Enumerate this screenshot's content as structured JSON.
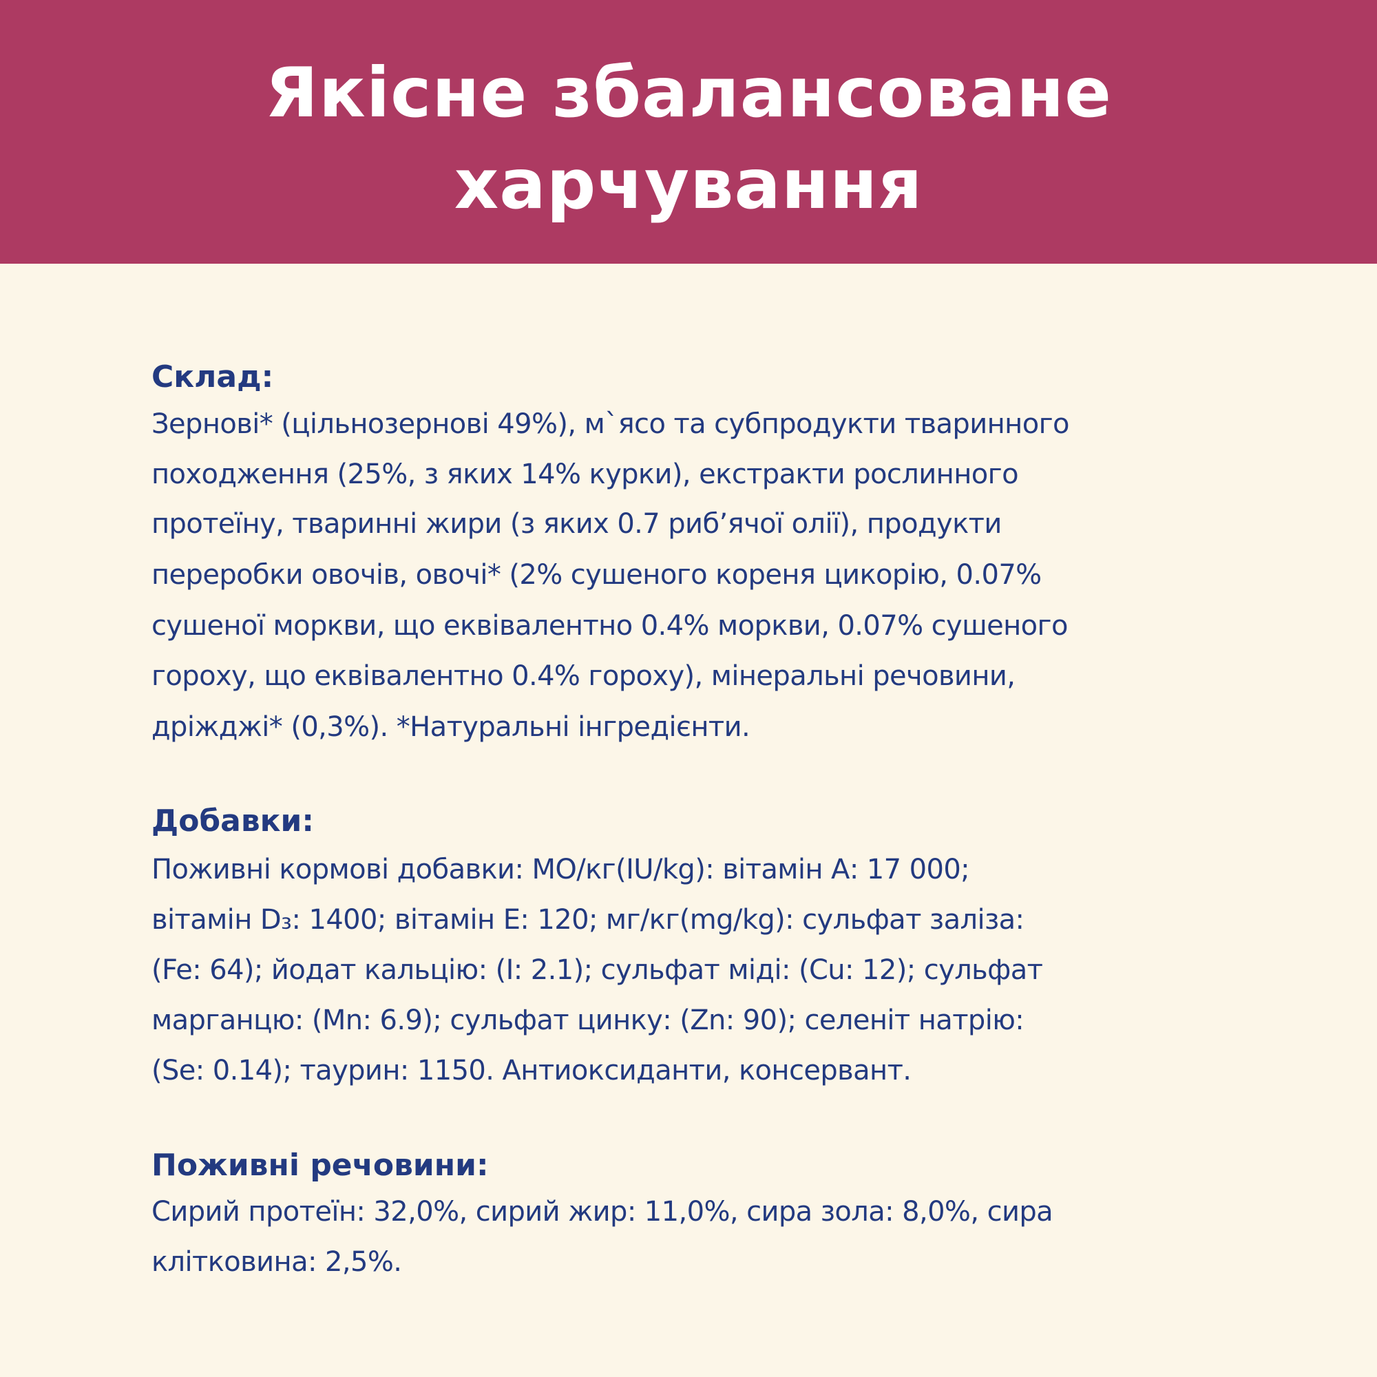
{
  "header": {
    "title_lines": [
      "Якісне збалансоване",
      "харчування"
    ],
    "background_color": "#AD3A62"
  },
  "sections": [
    {
      "heading": "Склад:",
      "lines": [
        "Зернові* (цільнозернові 49%), м`ясо та субпродукти тваринного",
        "походження (25%, з яких 14% курки), екстракти рослинного",
        "протеїну, тваринні жири (з яких 0.7 риб’ячої олії), продукти",
        "переробки овочів, овочі* (2% сушеного кореня цикорію, 0.07%",
        "сушеної моркви, що еквівалентно 0.4% моркви, 0.07% сушеного",
        "гороху, що еквівалентно 0.4% гороху), мінеральні речовини,",
        "дріжджі* (0,3%). *Натуральні інгредієнти."
      ]
    },
    {
      "heading": "Добавки:",
      "lines": [
        "Поживні кормові добавки: МО/кг(IU/kg): вітамін А: 17 000;",
        "вітамін D₃: 1400; вітамін Е: 120; мг/кг(mg/kg): сульфат заліза:",
        "(Fe: 64); йодат кальцію: (I: 2.1); сульфат міді: (Cu: 12); сульфат",
        "марганцю: (Mn: 6.9); сульфат цинку: (Zn: 90); селеніт натрію:",
        "(Se: 0.14); таурин: 1150. Антиоксиданти, консервант."
      ]
    },
    {
      "heading": "Поживні речовини:",
      "lines": [
        "Сирий протеїн: 32,0%, сирий жир: 11,0%, сира зола: 8,0%, сира",
        "клітковина: 2,5%."
      ]
    }
  ],
  "colors": {
    "text": "#233A80",
    "background": "#FCF6E8"
  }
}
